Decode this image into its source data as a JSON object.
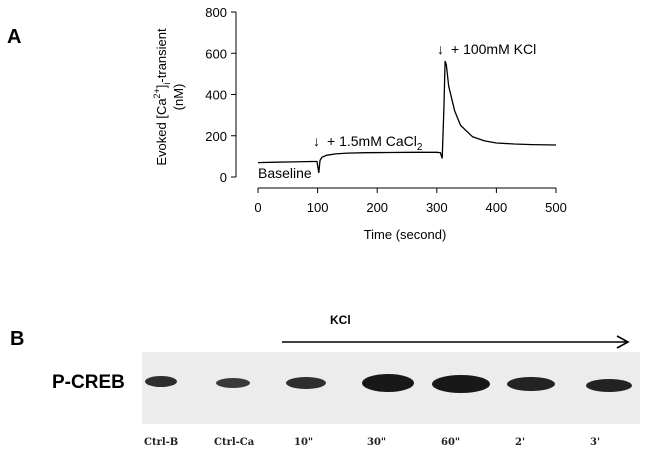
{
  "panel_a_label": "A",
  "panel_b_label": "B",
  "chart_data": {
    "type": "line",
    "title": "",
    "xlabel": "Time (second)",
    "ylabel_line1": "Evoked [Ca",
    "ylabel_sup": "2+",
    "ylabel_mid": "]",
    "ylabel_sub": "i",
    "ylabel_tail": "-transient",
    "ylabel_line2": "(nM)",
    "xlim": [
      0,
      500
    ],
    "ylim": [
      0,
      800
    ],
    "xticks": [
      0,
      100,
      200,
      300,
      400,
      500
    ],
    "yticks": [
      0,
      200,
      400,
      600,
      800
    ],
    "grid": false,
    "series": [
      {
        "color": "#000000",
        "x": [
          0,
          30,
          60,
          90,
          99,
          102,
          104,
          107,
          115,
          130,
          150,
          180,
          220,
          260,
          300,
          306,
          309,
          312,
          314,
          316,
          320,
          330,
          340,
          360,
          380,
          400,
          430,
          460,
          500
        ],
        "y": [
          70,
          72,
          73,
          75,
          75,
          20,
          80,
          95,
          105,
          112,
          116,
          118,
          119,
          120,
          120,
          118,
          90,
          350,
          562,
          545,
          440,
          320,
          250,
          195,
          175,
          165,
          160,
          157,
          155
        ]
      }
    ],
    "annotations": {
      "baseline": "Baseline",
      "cacl2_arrow": "↓",
      "cacl2_text_main": "+ 1.5mM CaCl",
      "cacl2_text_sub": "2",
      "kcl_arrow": "↓",
      "kcl_text": "+ 100mM KCl"
    }
  },
  "blot": {
    "row_label": "P-CREB",
    "treatment_label": "KCl",
    "lanes": [
      "Ctrl-B",
      "Ctrl-Ca",
      "10\"",
      "30\"",
      "60\"",
      "2'",
      "3'"
    ]
  }
}
